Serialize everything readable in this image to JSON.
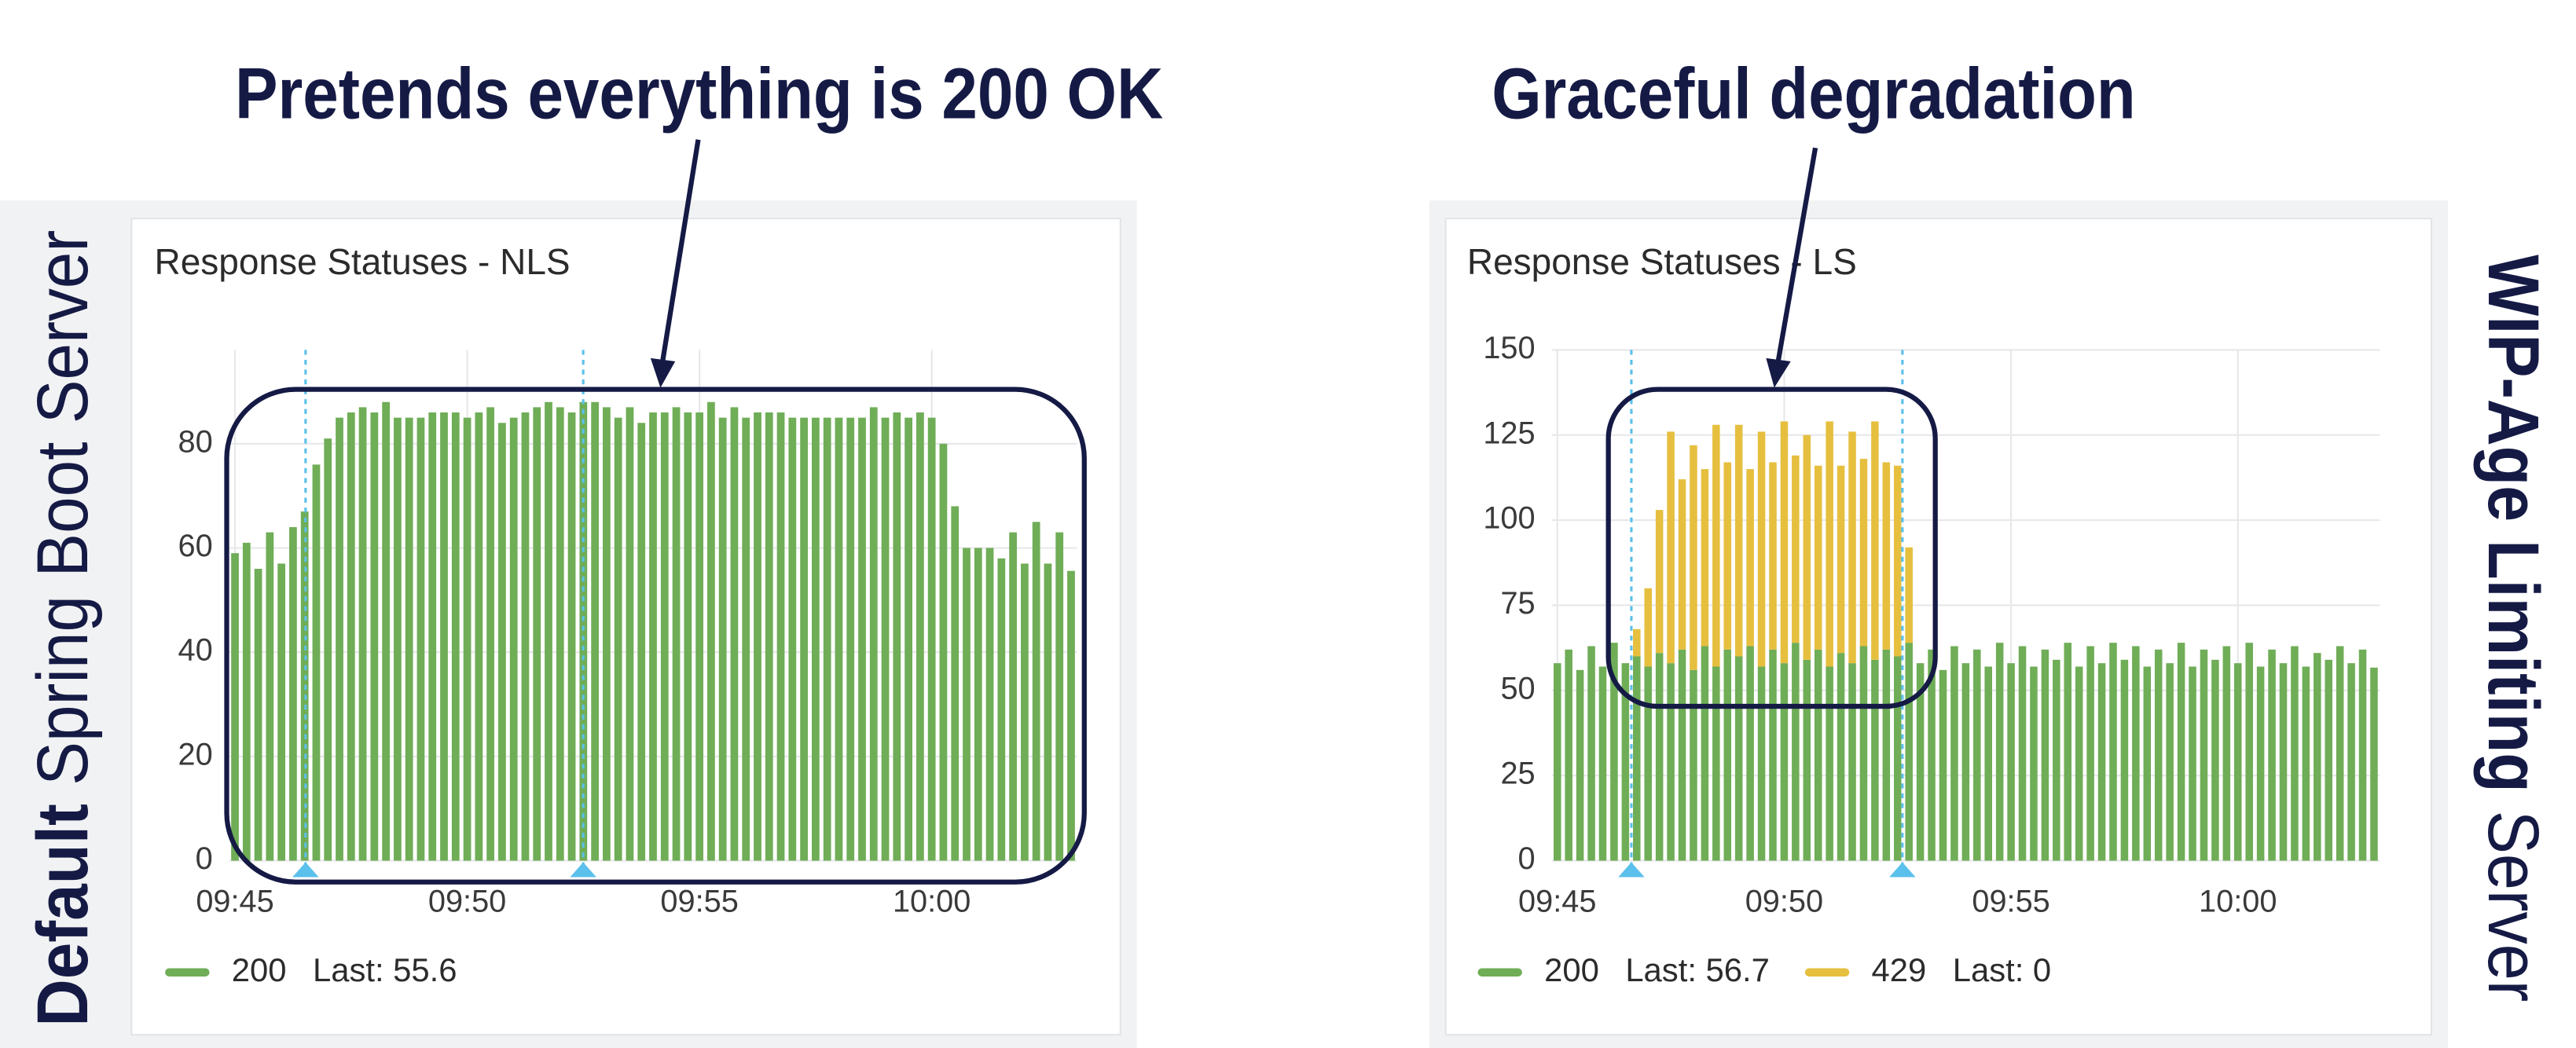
{
  "chart_data": [
    {
      "type": "bar",
      "stacked": true,
      "title": "Response Statuses - NLS",
      "annotation": "Pretends everything is 200 OK",
      "side_label": [
        "Default",
        "Spring Boot Server"
      ],
      "categories": [
        "09:45",
        null,
        null,
        null,
        null,
        null,
        null,
        null,
        null,
        null,
        null,
        null,
        null,
        null,
        null,
        null,
        null,
        null,
        null,
        null,
        "09:50",
        null,
        null,
        null,
        null,
        null,
        null,
        null,
        null,
        null,
        null,
        null,
        null,
        null,
        null,
        null,
        null,
        null,
        null,
        null,
        "09:55",
        null,
        null,
        null,
        null,
        null,
        null,
        null,
        null,
        null,
        null,
        null,
        null,
        null,
        null,
        null,
        null,
        null,
        null,
        null,
        "10:00",
        null,
        null,
        null,
        null,
        null,
        null,
        null,
        null,
        null,
        null,
        null,
        null
      ],
      "series": [
        {
          "name": "200",
          "color": "#6fad57",
          "legend_stat": "Last: 55.6",
          "values": [
            59,
            61,
            56,
            63,
            57,
            64,
            67,
            76,
            81,
            85,
            86,
            87,
            86,
            88,
            85,
            85,
            85,
            86,
            86,
            86,
            85,
            86,
            87,
            84,
            85,
            86,
            87,
            88,
            87,
            86,
            88,
            88,
            87,
            85,
            87,
            84,
            86,
            86,
            87,
            86,
            86,
            88,
            85,
            87,
            85,
            86,
            86,
            86,
            85,
            85,
            85,
            85,
            85,
            85,
            85,
            87,
            85,
            86,
            85,
            86,
            85,
            80,
            68,
            60,
            60,
            60,
            58,
            63,
            57,
            65,
            57,
            63,
            55.6
          ]
        }
      ],
      "ylim": [
        0,
        98
      ],
      "yticks": [
        0,
        20,
        40,
        60,
        80
      ],
      "grid": true
    },
    {
      "type": "bar",
      "stacked": true,
      "title": "Response Statuses - LS",
      "annotation": "Graceful degradation",
      "side_label": [
        "WIP-Age Limiting",
        "Server"
      ],
      "categories": [
        "09:45",
        null,
        null,
        null,
        null,
        null,
        null,
        null,
        null,
        null,
        null,
        null,
        null,
        null,
        null,
        null,
        null,
        null,
        null,
        null,
        "09:50",
        null,
        null,
        null,
        null,
        null,
        null,
        null,
        null,
        null,
        null,
        null,
        null,
        null,
        null,
        null,
        null,
        null,
        null,
        null,
        "09:55",
        null,
        null,
        null,
        null,
        null,
        null,
        null,
        null,
        null,
        null,
        null,
        null,
        null,
        null,
        null,
        null,
        null,
        null,
        null,
        "10:00",
        null,
        null,
        null,
        null,
        null,
        null,
        null,
        null,
        null,
        null,
        null,
        null
      ],
      "series": [
        {
          "name": "200",
          "color": "#6fad57",
          "legend_stat": "Last: 56.7",
          "values": [
            58,
            62,
            56,
            63,
            57,
            64,
            58,
            60,
            57,
            61,
            58,
            62,
            56,
            63,
            57,
            62,
            60,
            63,
            57,
            62,
            58,
            64,
            59,
            62,
            57,
            61,
            58,
            63,
            59,
            62,
            60,
            64,
            58,
            62,
            56,
            63,
            58,
            62,
            57,
            64,
            58,
            63,
            57,
            62,
            59,
            64,
            57,
            63,
            58,
            64,
            59,
            63,
            57,
            62,
            58,
            64,
            57,
            62,
            59,
            63,
            58,
            64,
            57,
            62,
            58,
            63,
            57,
            61,
            59,
            63,
            58,
            62,
            56.7
          ]
        },
        {
          "name": "429",
          "color": "#e6bf3f",
          "legend_stat": "Last: 0",
          "values": [
            0,
            0,
            0,
            0,
            0,
            0,
            0,
            8,
            23,
            42,
            68,
            50,
            66,
            52,
            71,
            55,
            68,
            52,
            69,
            55,
            71,
            55,
            66,
            54,
            72,
            55,
            68,
            55,
            70,
            55,
            56,
            28,
            0,
            0,
            0,
            0,
            0,
            0,
            0,
            0,
            0,
            0,
            0,
            0,
            0,
            0,
            0,
            0,
            0,
            0,
            0,
            0,
            0,
            0,
            0,
            0,
            0,
            0,
            0,
            0,
            0,
            0,
            0,
            0,
            0,
            0,
            0,
            0,
            0,
            0,
            0,
            0,
            0
          ]
        }
      ],
      "ylim": [
        0,
        150
      ],
      "yticks": [
        0,
        25,
        50,
        75,
        100,
        125,
        150
      ],
      "grid": true
    }
  ]
}
